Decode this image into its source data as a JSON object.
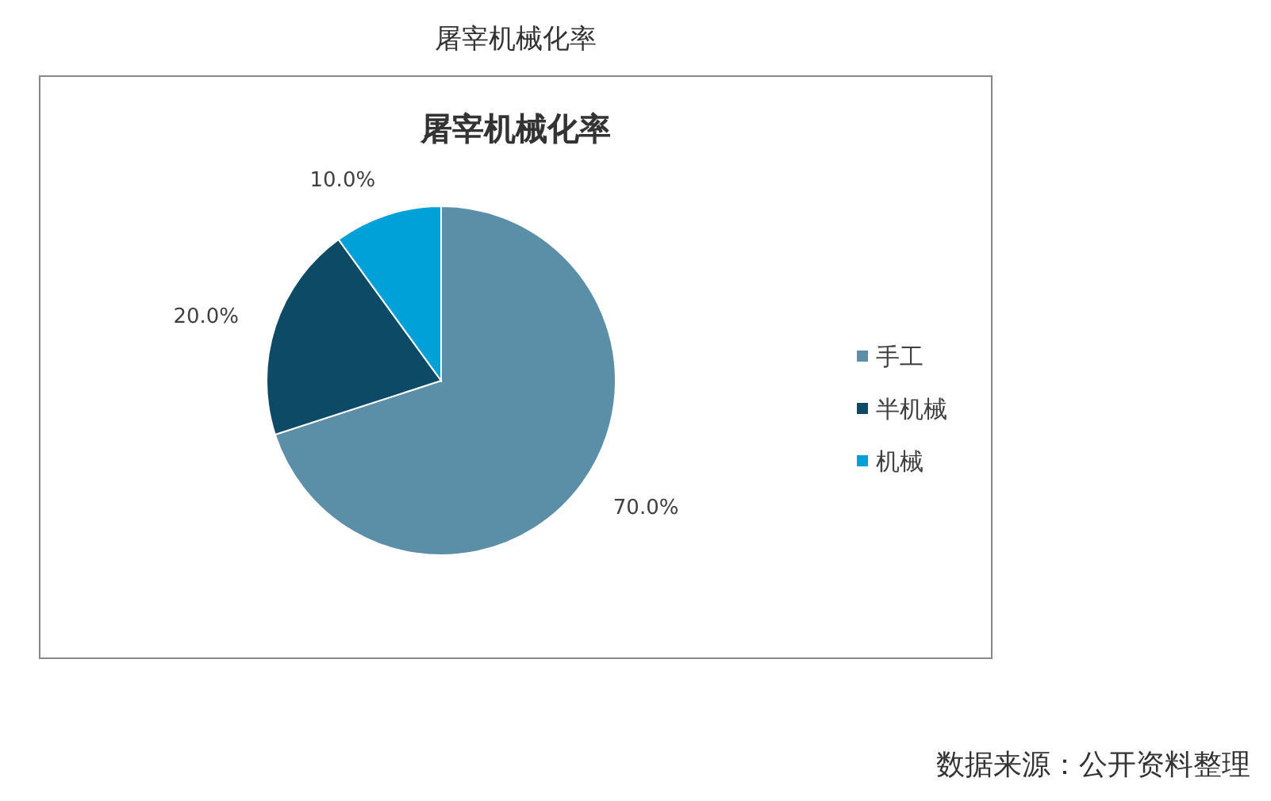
{
  "chart_data": {
    "type": "pie",
    "title": "屠宰机械化率",
    "subtitle": "屠宰机械化率",
    "categories": [
      "手工",
      "半机械",
      "机械"
    ],
    "values": [
      70,
      20,
      10
    ],
    "value_labels": [
      "70.0%",
      "20.0%",
      "10.0%"
    ],
    "colors": [
      "#5b8fa8",
      "#0d4a66",
      "#00a0d8"
    ],
    "legend": "right",
    "annotations": [
      "数据来源：公开资料整理"
    ]
  }
}
